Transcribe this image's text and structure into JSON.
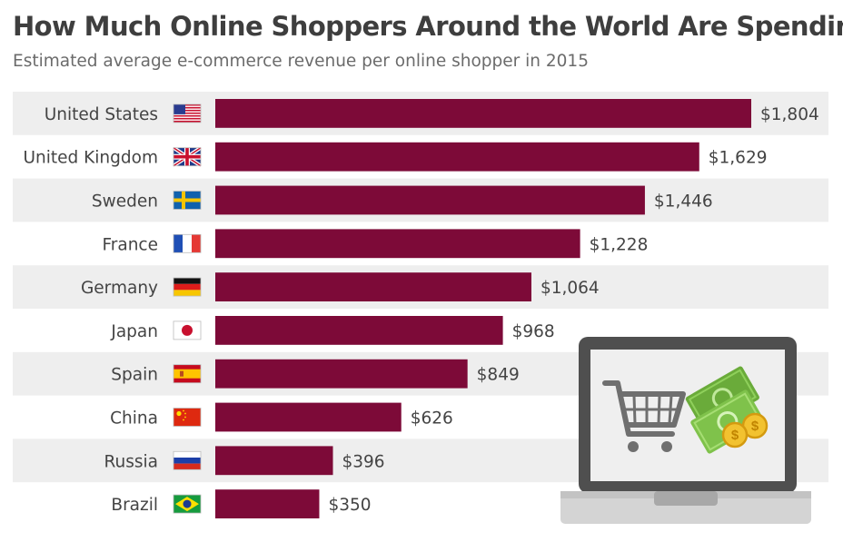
{
  "chart_data": {
    "type": "bar",
    "orientation": "horizontal",
    "title": "How Much Online Shoppers Around the World Are Spending",
    "subtitle": "Estimated average e-commerce revenue per online shopper in 2015",
    "categories": [
      "United States",
      "United Kingdom",
      "Sweden",
      "France",
      "Germany",
      "Japan",
      "Spain",
      "China",
      "Russia",
      "Brazil"
    ],
    "values": [
      1804,
      1629,
      1446,
      1228,
      1064,
      968,
      849,
      626,
      396,
      350
    ],
    "labels": [
      "$1,804",
      "$1,629",
      "$1,446",
      "$1,228",
      "$1,064",
      "$968",
      "$849",
      "$626",
      "$396",
      "$350"
    ],
    "flags": [
      "us-flag-icon",
      "uk-flag-icon",
      "sweden-flag-icon",
      "france-flag-icon",
      "germany-flag-icon",
      "japan-flag-icon",
      "spain-flag-icon",
      "china-flag-icon",
      "russia-flag-icon",
      "brazil-flag-icon"
    ],
    "xlim": [
      0,
      1804
    ],
    "grid": false,
    "legend": "none",
    "colors": {
      "bar": "#7d0a38",
      "row_band": "#eeeeee"
    }
  },
  "illustration": {
    "icons": [
      "laptop-icon",
      "shopping-cart-icon",
      "money-bills-icon",
      "coins-icon"
    ],
    "coin_symbol": "$"
  }
}
